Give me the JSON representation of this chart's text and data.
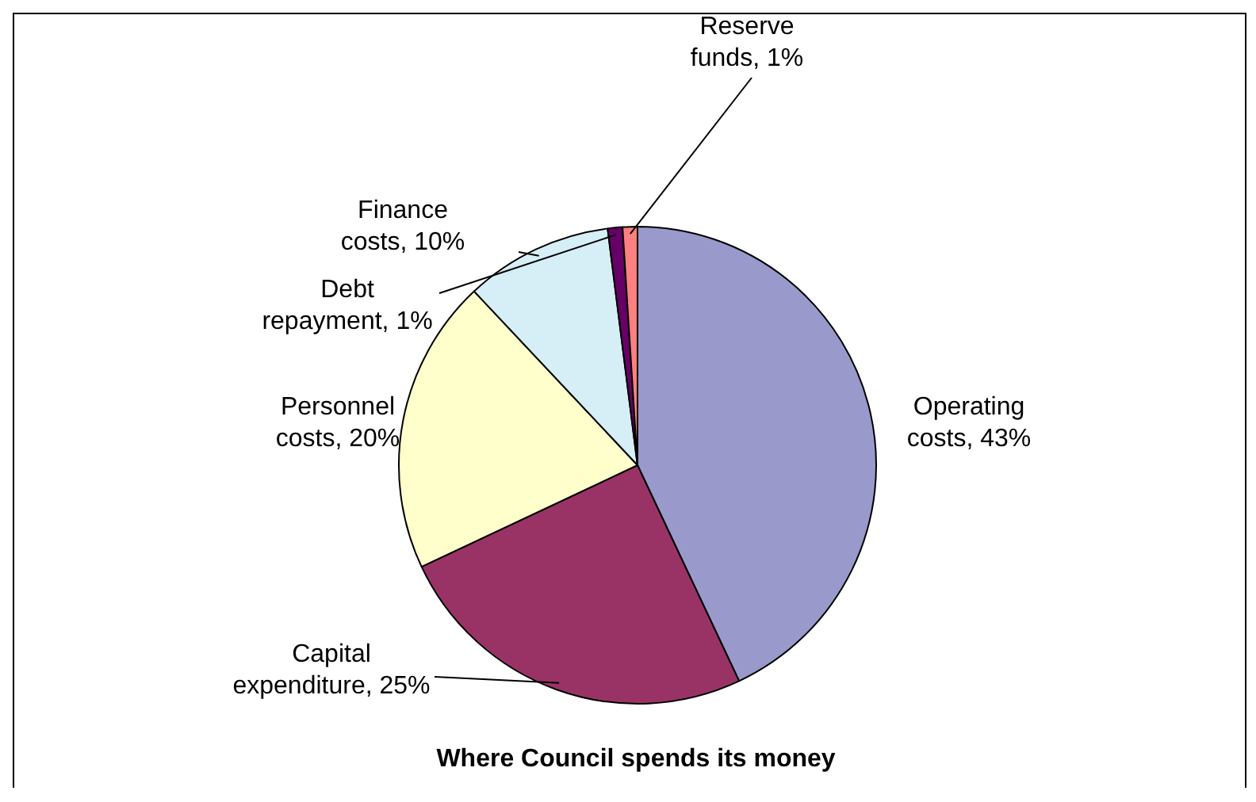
{
  "chart_data": {
    "type": "pie",
    "title": "Where Council spends its money",
    "categories": [
      "Operating costs",
      "Capital expenditure",
      "Personnel costs",
      "Finance costs",
      "Debt repayment",
      "Reserve funds"
    ],
    "values": [
      43,
      25,
      20,
      10,
      1,
      1
    ],
    "value_labels": [
      "43%",
      "25%",
      "20%",
      "10%",
      "1%",
      "1%"
    ],
    "colors": [
      "#9999cc",
      "#993366",
      "#ffffcc",
      "#d6eef5",
      "#660066",
      "#ff8080"
    ],
    "legend": false
  }
}
